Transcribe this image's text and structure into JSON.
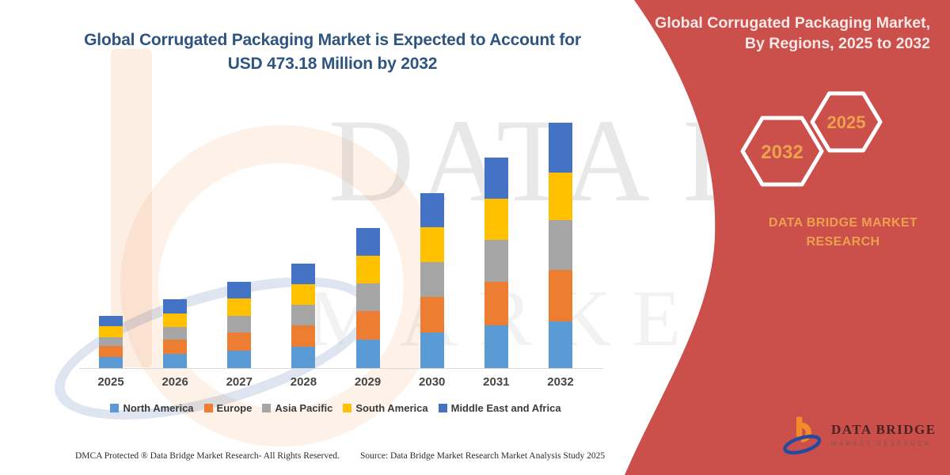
{
  "title": {
    "line1": "Global Corrugated Packaging Market is Expected to Account for",
    "line2": "USD 473.18 Million by 2032",
    "color": "#2E5480"
  },
  "right_panel": {
    "heading_line1": "Global Corrugated Packaging Market,",
    "heading_line2": "By Regions, 2025 to 2032",
    "hexagons": [
      {
        "label": "2032"
      },
      {
        "label": "2025"
      }
    ],
    "brand_line1": "DATA BRIDGE MARKET",
    "brand_line2": "RESEARCH",
    "panel_color": "#CB4F4B",
    "accent_text_color": "#ECA14E"
  },
  "logo": {
    "name": "DATA BRIDGE",
    "tagline": "MARKET RESEARCH"
  },
  "footer": {
    "left": "DMCA Protected ® Data Bridge Market Research-  All Rights Reserved.",
    "right": "Source: Data Bridge Market Research  Market Analysis Study 2025"
  },
  "watermark": {
    "text_top": "DATA BRIDGE",
    "text_bottom": "MARKET RESE"
  },
  "chart_data": {
    "type": "bar",
    "stacked": true,
    "title": "Global Corrugated Packaging Market is Expected to Account for USD 473.18 Million by 2032",
    "unit": "USD Million",
    "xlabel": "",
    "ylabel": "",
    "gridlines": false,
    "legend_position": "bottom",
    "ylim": [
      0,
      500
    ],
    "categories": [
      "2025",
      "2026",
      "2027",
      "2028",
      "2029",
      "2030",
      "2031",
      "2032"
    ],
    "series": [
      {
        "name": "North America",
        "color": "#5B9BD5",
        "values": [
          20.8,
          26.9,
          33.9,
          40.8,
          54.6,
          68.2,
          82.1,
          90.5
        ]
      },
      {
        "name": "Europe",
        "color": "#ED7D31",
        "values": [
          21.9,
          27.8,
          34.8,
          41.9,
          55.9,
          69.9,
          84.2,
          98.2
        ]
      },
      {
        "name": "Asia Pacific",
        "color": "#A5A5A5",
        "values": [
          16.9,
          24.9,
          32.2,
          39.2,
          53.1,
          66.8,
          80.6,
          96.7
        ]
      },
      {
        "name": "South America",
        "color": "#FFC000",
        "values": [
          20.9,
          26.4,
          33.4,
          40.1,
          53.6,
          66.5,
          80.2,
          91.2
        ]
      },
      {
        "name": "Middle East and Africa",
        "color": "#4472C4",
        "values": [
          19.73,
          26.29,
          32.58,
          38.97,
          52.44,
          65.39,
          78.37,
          96.58
        ]
      }
    ],
    "totals": [
      100.23,
      132.29,
      166.88,
      200.97,
      269.64,
      336.79,
      405.47,
      473.18
    ],
    "annotation": "USD 473.18 Million by 2032"
  }
}
